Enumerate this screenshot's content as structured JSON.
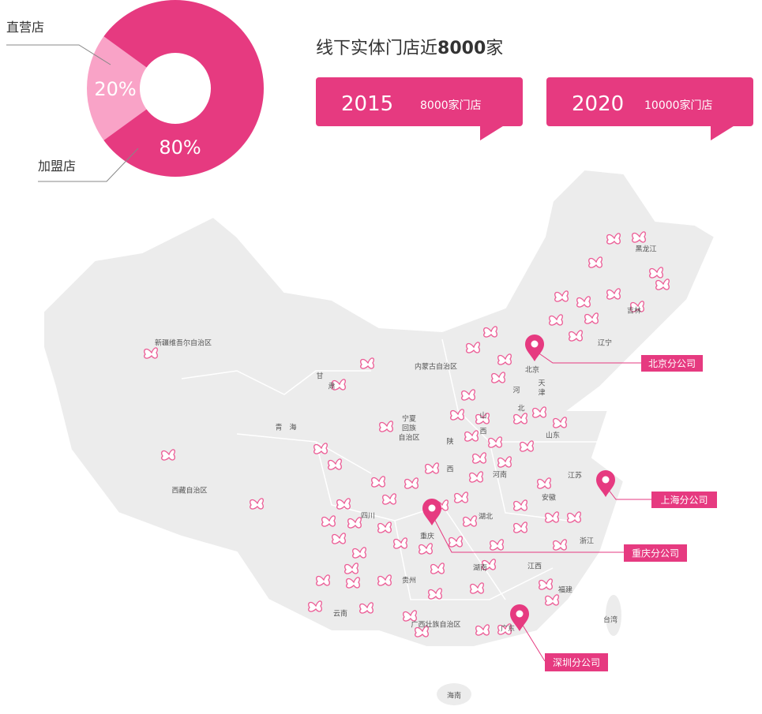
{
  "chart_data": {
    "type": "pie",
    "categories": [
      "直营店",
      "加盟店"
    ],
    "values": [
      20,
      80
    ],
    "value_labels": [
      "20%",
      "80%"
    ],
    "colors": [
      "#f9a3c7",
      "#e63a80"
    ]
  },
  "header": {
    "title_prefix": "线下实体门店近",
    "title_bold": "8000",
    "title_suffix": "家"
  },
  "stats": [
    {
      "year": "2015",
      "text": "8000家门店"
    },
    {
      "year": "2020",
      "text": "10000家门店"
    }
  ],
  "map": {
    "regions": [
      "新疆维吾尔自治区",
      "西藏自治区",
      "青　海",
      "甘",
      "肃",
      "内蒙古自治区",
      "宁夏",
      "回族",
      "自治区",
      "黑龙江",
      "吉林",
      "辽宁",
      "北京",
      "天",
      "津",
      "河",
      "北",
      "山",
      "西",
      "山东",
      "陕",
      "西",
      "河南",
      "江苏",
      "安徽",
      "湖北",
      "四川",
      "重庆",
      "浙江",
      "湖南",
      "江西",
      "贵州",
      "福建",
      "云南",
      "广西壮族自治区",
      "广东",
      "台湾",
      "海南"
    ],
    "offices": [
      "北京分公司",
      "上海分公司",
      "重庆分公司",
      "深圳分公司"
    ]
  }
}
